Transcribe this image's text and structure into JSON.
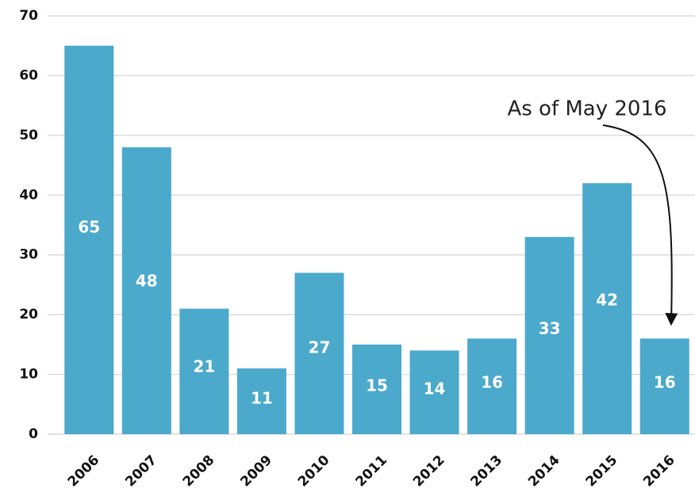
{
  "chart_data": {
    "type": "bar",
    "categories": [
      "2006",
      "2007",
      "2008",
      "2009",
      "2010",
      "2011",
      "2012",
      "2013",
      "2014",
      "2015",
      "2016"
    ],
    "values": [
      65,
      48,
      21,
      11,
      27,
      15,
      14,
      16,
      33,
      42,
      16
    ],
    "color": "#4ba9cc",
    "ylim": [
      0,
      70
    ],
    "yticks": [
      0,
      10,
      20,
      30,
      40,
      50,
      60,
      70
    ],
    "grid": true,
    "annotation": "As of May 2016"
  }
}
